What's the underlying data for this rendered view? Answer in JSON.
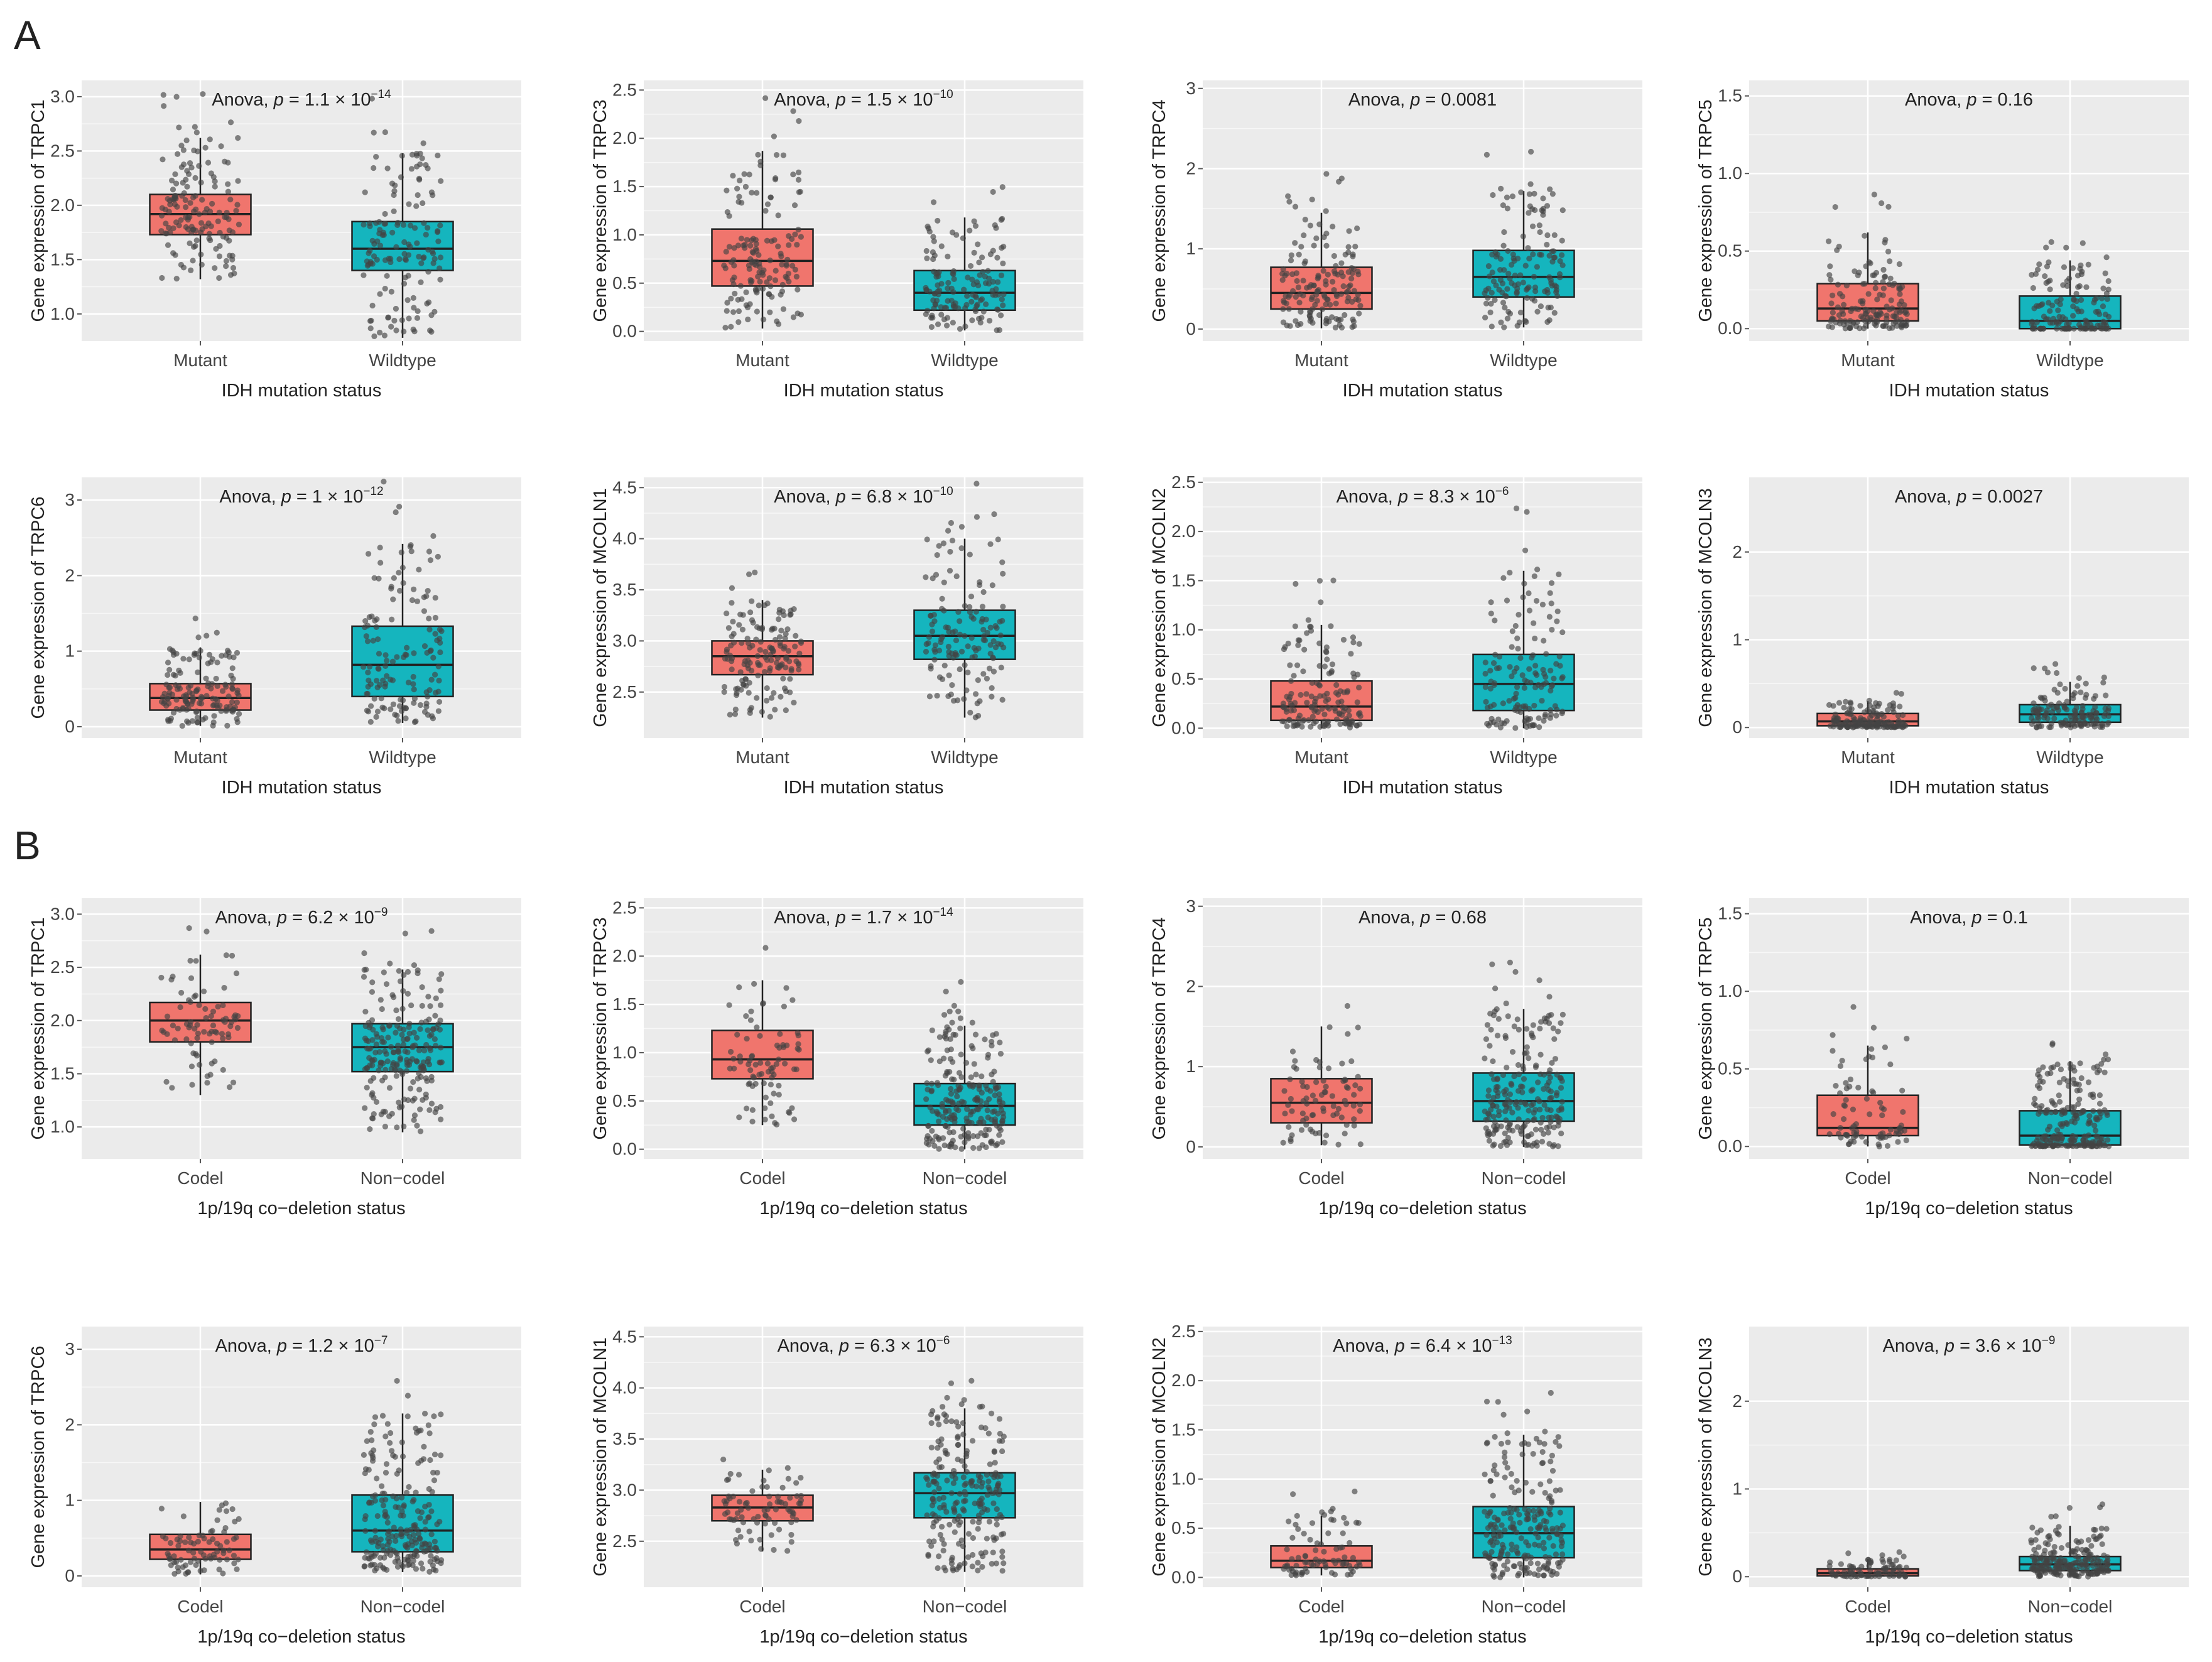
{
  "figure": {
    "panel_labels": [
      "A",
      "B"
    ],
    "colors": {
      "group1": "#F0756D",
      "group2": "#15B5BE",
      "panel_bg": "#EBEBEB",
      "grid": "#FFFFFF",
      "dot": "#444444"
    }
  },
  "chart_data": [
    {
      "type": "box",
      "panel": "A",
      "title_prefix": "Anova, ",
      "title_p": "p",
      "title_rest": " = 1.1 × 10",
      "title_sup": "−14",
      "ylabel": "Gene expression of TRPC1",
      "xlabel": "IDH mutation status",
      "categories": [
        "Mutant",
        "Wildtype"
      ],
      "yticks": [
        1.0,
        1.5,
        2.0,
        2.5,
        3.0
      ],
      "ylim": [
        0.75,
        3.15
      ],
      "boxes": [
        {
          "q1": 1.73,
          "median": 1.92,
          "q3": 2.1,
          "whisker_low": 1.32,
          "whisker_high": 2.62,
          "n": 150
        },
        {
          "q1": 1.4,
          "median": 1.6,
          "q3": 1.85,
          "whisker_low": 0.78,
          "whisker_high": 2.48,
          "n": 140
        }
      ]
    },
    {
      "type": "box",
      "panel": "A",
      "title_prefix": "Anova, ",
      "title_p": "p",
      "title_rest": " = 1.5 × 10",
      "title_sup": "−10",
      "ylabel": "Gene expression of TRPC3",
      "xlabel": "IDH mutation status",
      "categories": [
        "Mutant",
        "Wildtype"
      ],
      "yticks": [
        0.0,
        0.5,
        1.0,
        1.5,
        2.0,
        2.5
      ],
      "ylim": [
        -0.1,
        2.6
      ],
      "boxes": [
        {
          "q1": 0.47,
          "median": 0.73,
          "q3": 1.06,
          "whisker_low": 0.03,
          "whisker_high": 1.87,
          "n": 150
        },
        {
          "q1": 0.22,
          "median": 0.4,
          "q3": 0.63,
          "whisker_low": 0.01,
          "whisker_high": 1.18,
          "n": 140
        }
      ]
    },
    {
      "type": "box",
      "panel": "A",
      "title_prefix": "Anova, ",
      "title_p": "p",
      "title_rest": " = 0.0081",
      "title_sup": "",
      "ylabel": "Gene expression of TRPC4",
      "xlabel": "IDH mutation status",
      "categories": [
        "Mutant",
        "Wildtype"
      ],
      "yticks": [
        0,
        1,
        2,
        3
      ],
      "ylim": [
        -0.15,
        3.1
      ],
      "boxes": [
        {
          "q1": 0.25,
          "median": 0.45,
          "q3": 0.77,
          "whisker_low": 0.01,
          "whisker_high": 1.45,
          "n": 150
        },
        {
          "q1": 0.4,
          "median": 0.65,
          "q3": 0.98,
          "whisker_low": 0.02,
          "whisker_high": 1.72,
          "n": 140
        }
      ]
    },
    {
      "type": "box",
      "panel": "A",
      "title_prefix": "Anova, ",
      "title_p": "p",
      "title_rest": " = 0.16",
      "title_sup": "",
      "ylabel": "Gene expression of TRPC5",
      "xlabel": "IDH mutation status",
      "categories": [
        "Mutant",
        "Wildtype"
      ],
      "yticks": [
        0.0,
        0.5,
        1.0,
        1.5
      ],
      "ylim": [
        -0.08,
        1.6
      ],
      "boxes": [
        {
          "q1": 0.05,
          "median": 0.13,
          "q3": 0.29,
          "whisker_low": 0.0,
          "whisker_high": 0.62,
          "n": 150
        },
        {
          "q1": 0.0,
          "median": 0.05,
          "q3": 0.21,
          "whisker_low": 0.0,
          "whisker_high": 0.44,
          "n": 140
        }
      ]
    },
    {
      "type": "box",
      "panel": "A",
      "title_prefix": "Anova, ",
      "title_p": "p",
      "title_rest": " = 1 × 10",
      "title_sup": "−12",
      "ylabel": "Gene expression of TRPC6",
      "xlabel": "IDH mutation status",
      "categories": [
        "Mutant",
        "Wildtype"
      ],
      "yticks": [
        0,
        1,
        2,
        3
      ],
      "ylim": [
        -0.15,
        3.3
      ],
      "boxes": [
        {
          "q1": 0.22,
          "median": 0.38,
          "q3": 0.57,
          "whisker_low": 0.01,
          "whisker_high": 1.05,
          "n": 150
        },
        {
          "q1": 0.4,
          "median": 0.82,
          "q3": 1.33,
          "whisker_low": 0.05,
          "whisker_high": 2.42,
          "n": 140
        }
      ]
    },
    {
      "type": "box",
      "panel": "A",
      "title_prefix": "Anova, ",
      "title_p": "p",
      "title_rest": " = 6.8 × 10",
      "title_sup": "−10",
      "ylabel": "Gene expression of MCOLN1",
      "xlabel": "IDH mutation status",
      "categories": [
        "Mutant",
        "Wildtype"
      ],
      "yticks": [
        2.5,
        3.0,
        3.5,
        4.0,
        4.5
      ],
      "ylim": [
        2.05,
        4.6
      ],
      "boxes": [
        {
          "q1": 2.67,
          "median": 2.85,
          "q3": 3.0,
          "whisker_low": 2.25,
          "whisker_high": 3.4,
          "n": 150
        },
        {
          "q1": 2.82,
          "median": 3.05,
          "q3": 3.3,
          "whisker_low": 2.25,
          "whisker_high": 4.0,
          "n": 140
        }
      ]
    },
    {
      "type": "box",
      "panel": "A",
      "title_prefix": "Anova, ",
      "title_p": "p",
      "title_rest": " = 8.3 × 10",
      "title_sup": "−6",
      "ylabel": "Gene expression of MCOLN2",
      "xlabel": "IDH mutation status",
      "categories": [
        "Mutant",
        "Wildtype"
      ],
      "yticks": [
        0.0,
        0.5,
        1.0,
        1.5,
        2.0,
        2.5
      ],
      "ylim": [
        -0.1,
        2.55
      ],
      "boxes": [
        {
          "q1": 0.08,
          "median": 0.22,
          "q3": 0.48,
          "whisker_low": 0.0,
          "whisker_high": 1.05,
          "n": 150
        },
        {
          "q1": 0.18,
          "median": 0.45,
          "q3": 0.75,
          "whisker_low": 0.0,
          "whisker_high": 1.6,
          "n": 140
        }
      ]
    },
    {
      "type": "box",
      "panel": "A",
      "title_prefix": "Anova, ",
      "title_p": "p",
      "title_rest": " = 0.0027",
      "title_sup": "",
      "ylabel": "Gene expression of MCOLN3",
      "xlabel": "IDH mutation status",
      "categories": [
        "Mutant",
        "Wildtype"
      ],
      "yticks": [
        0,
        1,
        2
      ],
      "ylim": [
        -0.12,
        2.85
      ],
      "boxes": [
        {
          "q1": 0.02,
          "median": 0.07,
          "q3": 0.16,
          "whisker_low": 0.0,
          "whisker_high": 0.3,
          "n": 150
        },
        {
          "q1": 0.06,
          "median": 0.15,
          "q3": 0.26,
          "whisker_low": 0.0,
          "whisker_high": 0.52,
          "n": 140
        }
      ]
    },
    {
      "type": "box",
      "panel": "B",
      "title_prefix": "Anova, ",
      "title_p": "p",
      "title_rest": " = 6.2 × 10",
      "title_sup": "−9",
      "ylabel": "Gene expression of TRPC1",
      "xlabel": "1p/19q co−deletion status",
      "categories": [
        "Codel",
        "Non−codel"
      ],
      "yticks": [
        1.0,
        1.5,
        2.0,
        2.5,
        3.0
      ],
      "ylim": [
        0.7,
        3.15
      ],
      "boxes": [
        {
          "q1": 1.8,
          "median": 2.0,
          "q3": 2.17,
          "whisker_low": 1.3,
          "whisker_high": 2.62,
          "n": 80
        },
        {
          "q1": 1.52,
          "median": 1.75,
          "q3": 1.97,
          "whisker_low": 0.95,
          "whisker_high": 2.48,
          "n": 220
        }
      ]
    },
    {
      "type": "box",
      "panel": "B",
      "title_prefix": "Anova, ",
      "title_p": "p",
      "title_rest": " = 1.7 × 10",
      "title_sup": "−14",
      "ylabel": "Gene expression of TRPC3",
      "xlabel": "1p/19q co−deletion status",
      "categories": [
        "Codel",
        "Non−codel"
      ],
      "yticks": [
        0.0,
        0.5,
        1.0,
        1.5,
        2.0,
        2.5
      ],
      "ylim": [
        -0.1,
        2.6
      ],
      "boxes": [
        {
          "q1": 0.73,
          "median": 0.93,
          "q3": 1.23,
          "whisker_low": 0.25,
          "whisker_high": 1.75,
          "n": 80
        },
        {
          "q1": 0.25,
          "median": 0.45,
          "q3": 0.68,
          "whisker_low": 0.0,
          "whisker_high": 1.28,
          "n": 220
        }
      ]
    },
    {
      "type": "box",
      "panel": "B",
      "title_prefix": "Anova, ",
      "title_p": "p",
      "title_rest": " = 0.68",
      "title_sup": "",
      "ylabel": "Gene expression of TRPC4",
      "xlabel": "1p/19q co−deletion status",
      "categories": [
        "Codel",
        "Non−codel"
      ],
      "yticks": [
        0,
        1,
        2,
        3
      ],
      "ylim": [
        -0.15,
        3.1
      ],
      "boxes": [
        {
          "q1": 0.3,
          "median": 0.55,
          "q3": 0.85,
          "whisker_low": 0.02,
          "whisker_high": 1.5,
          "n": 80
        },
        {
          "q1": 0.32,
          "median": 0.57,
          "q3": 0.92,
          "whisker_low": 0.0,
          "whisker_high": 1.72,
          "n": 220
        }
      ]
    },
    {
      "type": "box",
      "panel": "B",
      "title_prefix": "Anova, ",
      "title_p": "p",
      "title_rest": " = 0.1",
      "title_sup": "",
      "ylabel": "Gene expression of TRPC5",
      "xlabel": "1p/19q co−deletion status",
      "categories": [
        "Codel",
        "Non−codel"
      ],
      "yticks": [
        0.0,
        0.5,
        1.0,
        1.5
      ],
      "ylim": [
        -0.08,
        1.6
      ],
      "boxes": [
        {
          "q1": 0.07,
          "median": 0.12,
          "q3": 0.33,
          "whisker_low": 0.0,
          "whisker_high": 0.65,
          "n": 80
        },
        {
          "q1": 0.01,
          "median": 0.07,
          "q3": 0.23,
          "whisker_low": 0.0,
          "whisker_high": 0.55,
          "n": 220
        }
      ]
    },
    {
      "type": "box",
      "panel": "B",
      "title_prefix": "Anova, ",
      "title_p": "p",
      "title_rest": " = 1.2 × 10",
      "title_sup": "−7",
      "ylabel": "Gene expression of TRPC6",
      "xlabel": "1p/19q co−deletion status",
      "categories": [
        "Codel",
        "Non−codel"
      ],
      "yticks": [
        0,
        1,
        2,
        3
      ],
      "ylim": [
        -0.15,
        3.3
      ],
      "boxes": [
        {
          "q1": 0.22,
          "median": 0.35,
          "q3": 0.55,
          "whisker_low": 0.02,
          "whisker_high": 0.98,
          "n": 80
        },
        {
          "q1": 0.32,
          "median": 0.6,
          "q3": 1.07,
          "whisker_low": 0.05,
          "whisker_high": 2.15,
          "n": 220
        }
      ]
    },
    {
      "type": "box",
      "panel": "B",
      "title_prefix": "Anova, ",
      "title_p": "p",
      "title_rest": " = 6.3 × 10",
      "title_sup": "−6",
      "ylabel": "Gene expression of MCOLN1",
      "xlabel": "1p/19q co−deletion status",
      "categories": [
        "Codel",
        "Non−codel"
      ],
      "yticks": [
        2.5,
        3.0,
        3.5,
        4.0,
        4.5
      ],
      "ylim": [
        2.05,
        4.6
      ],
      "boxes": [
        {
          "q1": 2.7,
          "median": 2.83,
          "q3": 2.95,
          "whisker_low": 2.4,
          "whisker_high": 3.2,
          "n": 80
        },
        {
          "q1": 2.73,
          "median": 2.97,
          "q3": 3.17,
          "whisker_low": 2.2,
          "whisker_high": 3.8,
          "n": 220
        }
      ]
    },
    {
      "type": "box",
      "panel": "B",
      "title_prefix": "Anova, ",
      "title_p": "p",
      "title_rest": " = 6.4 × 10",
      "title_sup": "−13",
      "ylabel": "Gene expression of MCOLN2",
      "xlabel": "1p/19q co−deletion status",
      "categories": [
        "Codel",
        "Non−codel"
      ],
      "yticks": [
        0.0,
        0.5,
        1.0,
        1.5,
        2.0,
        2.5
      ],
      "ylim": [
        -0.1,
        2.55
      ],
      "boxes": [
        {
          "q1": 0.1,
          "median": 0.17,
          "q3": 0.32,
          "whisker_low": 0.02,
          "whisker_high": 0.63,
          "n": 80
        },
        {
          "q1": 0.2,
          "median": 0.45,
          "q3": 0.72,
          "whisker_low": 0.0,
          "whisker_high": 1.45,
          "n": 220
        }
      ]
    },
    {
      "type": "box",
      "panel": "B",
      "title_prefix": "Anova, ",
      "title_p": "p",
      "title_rest": " = 3.6 × 10",
      "title_sup": "−9",
      "ylabel": "Gene expression of MCOLN3",
      "xlabel": "1p/19q co−deletion status",
      "categories": [
        "Codel",
        "Non−codel"
      ],
      "yticks": [
        0,
        1,
        2
      ],
      "ylim": [
        -0.12,
        2.85
      ],
      "boxes": [
        {
          "q1": 0.01,
          "median": 0.04,
          "q3": 0.09,
          "whisker_low": 0.0,
          "whisker_high": 0.2,
          "n": 80
        },
        {
          "q1": 0.07,
          "median": 0.14,
          "q3": 0.23,
          "whisker_low": 0.0,
          "whisker_high": 0.58,
          "n": 220
        }
      ]
    }
  ]
}
